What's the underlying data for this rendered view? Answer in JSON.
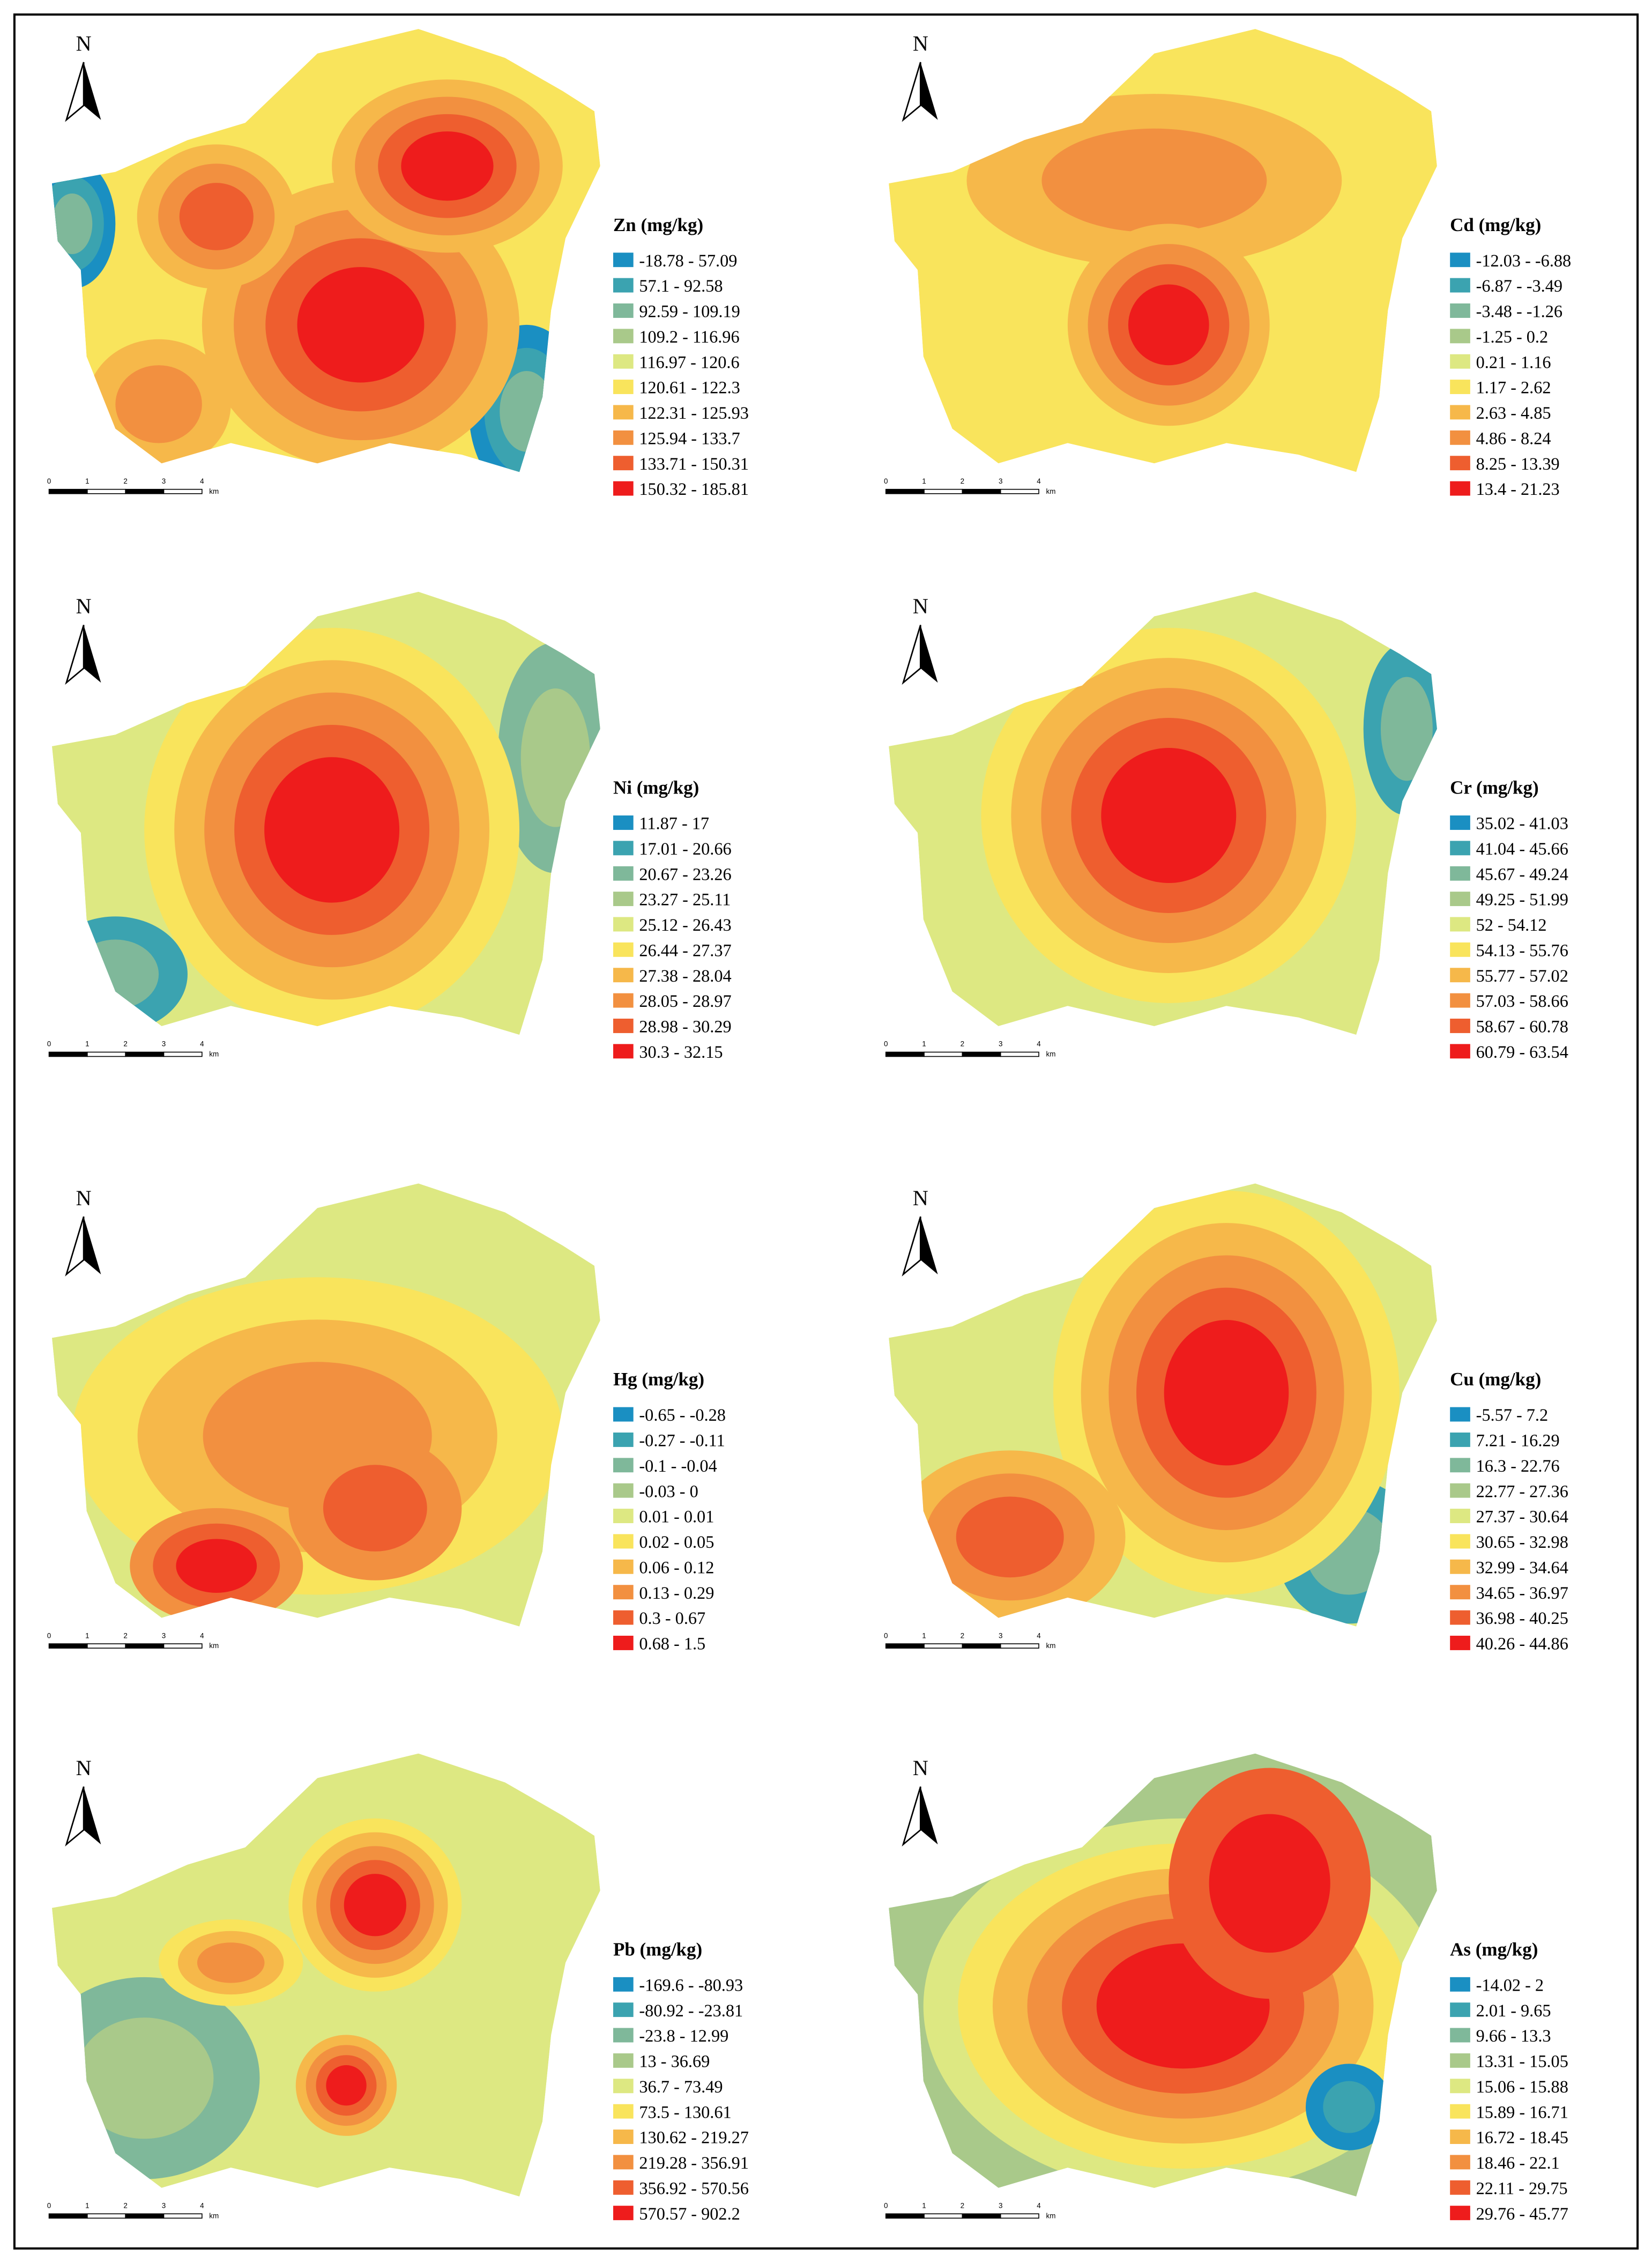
{
  "north": "N",
  "scale": [
    "0",
    "1",
    "2",
    "3",
    "4",
    "km"
  ],
  "legend_colors": [
    "#1a8fc2",
    "#3ba3b0",
    "#7fb89a",
    "#a9c98a",
    "#dde882",
    "#f9e45c",
    "#f6b84a",
    "#f29040",
    "#ee5e2f",
    "#ee1c1c"
  ],
  "panels": [
    {
      "title": "Zn (mg/kg)",
      "legend": [
        "-18.78 - 57.09",
        "57.1 - 92.58",
        "92.59 - 109.19",
        "109.2 - 116.96",
        "116.97 - 120.6",
        "120.61 - 122.3",
        "122.31 - 125.93",
        "125.94 - 133.7",
        "133.71 - 150.31",
        "150.32 - 185.81"
      ]
    },
    {
      "title": "Cd (mg/kg)",
      "legend": [
        "-12.03 - -6.88",
        "-6.87 - -3.49",
        "-3.48 - -1.26",
        "-1.25 - 0.2",
        "0.21 - 1.16",
        "1.17 - 2.62",
        "2.63 - 4.85",
        "4.86 - 8.24",
        "8.25 - 13.39",
        "13.4 - 21.23"
      ]
    },
    {
      "title": "Ni (mg/kg)",
      "legend": [
        "11.87 - 17",
        "17.01 - 20.66",
        "20.67 - 23.26",
        "23.27 - 25.11",
        "25.12 - 26.43",
        "26.44 - 27.37",
        "27.38 - 28.04",
        "28.05 - 28.97",
        "28.98 - 30.29",
        "30.3 - 32.15"
      ]
    },
    {
      "title": "Cr (mg/kg)",
      "legend": [
        "35.02 - 41.03",
        "41.04 - 45.66",
        "45.67 - 49.24",
        "49.25 - 51.99",
        "52 - 54.12",
        "54.13 - 55.76",
        "55.77 - 57.02",
        "57.03 - 58.66",
        "58.67 - 60.78",
        "60.79 - 63.54"
      ]
    },
    {
      "title": "Hg (mg/kg)",
      "legend": [
        "-0.65 - -0.28",
        "-0.27 - -0.11",
        "-0.1 - -0.04",
        "-0.03 - 0",
        "0.01 - 0.01",
        "0.02 - 0.05",
        "0.06 - 0.12",
        "0.13 - 0.29",
        "0.3 - 0.67",
        "0.68 - 1.5"
      ]
    },
    {
      "title": "Cu (mg/kg)",
      "legend": [
        "-5.57 - 7.2",
        "7.21 - 16.29",
        "16.3 - 22.76",
        "22.77 - 27.36",
        "27.37 - 30.64",
        "30.65 - 32.98",
        "32.99 - 34.64",
        "34.65 - 36.97",
        "36.98 - 40.25",
        "40.26 - 44.86"
      ]
    },
    {
      "title": "Pb (mg/kg)",
      "legend": [
        "-169.6 - -80.93",
        "-80.92 - -23.81",
        "-23.8 - 12.99",
        "13 - 36.69",
        "36.7 - 73.49",
        "73.5 - 130.61",
        "130.62 - 219.27",
        "219.28 - 356.91",
        "356.92 - 570.56",
        "570.57 - 902.2"
      ]
    },
    {
      "title": "As (mg/kg)",
      "legend": [
        "-14.02 - 2",
        "2.01 - 9.65",
        "9.66 - 13.3",
        "13.31 - 15.05",
        "15.06 - 15.88",
        "15.89 - 16.71",
        "16.72 - 18.45",
        "18.46 - 22.1",
        "22.11 - 29.75",
        "29.76 - 45.77"
      ]
    }
  ]
}
